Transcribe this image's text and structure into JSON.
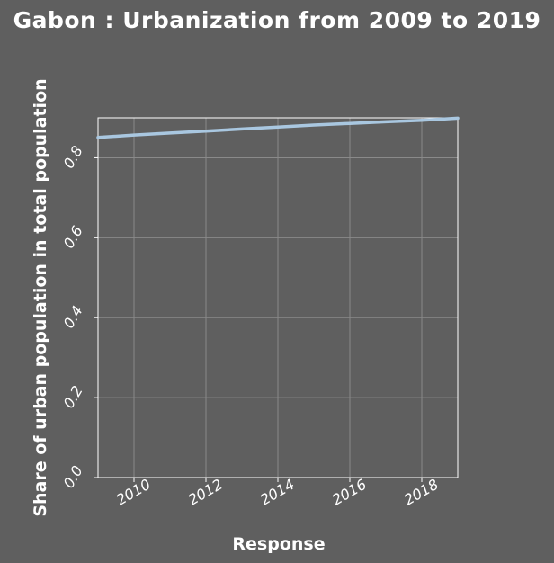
{
  "chart_data": {
    "type": "line",
    "title": "Gabon : Urbanization from 2009 to 2019",
    "xlabel": "Response",
    "ylabel": "Share of urban population in total population",
    "xlim": [
      2009,
      2019
    ],
    "ylim": [
      0,
      0.9
    ],
    "xticks": [
      2010,
      2012,
      2014,
      2016,
      2018
    ],
    "yticks": [
      0.0,
      0.2,
      0.4,
      0.6,
      0.8
    ],
    "xtick_labels": [
      "2010",
      "2012",
      "2014",
      "2016",
      "2018"
    ],
    "ytick_labels": [
      "0.0",
      "0.2",
      "0.4",
      "0.6",
      "0.8"
    ],
    "grid": true,
    "series": [
      {
        "x": [
          2009,
          2010,
          2011,
          2012,
          2013,
          2014,
          2015,
          2016,
          2017,
          2018,
          2019
        ],
        "values": [
          0.851,
          0.857,
          0.862,
          0.867,
          0.872,
          0.877,
          0.882,
          0.886,
          0.89,
          0.894,
          0.899
        ],
        "color": "#a9c7e0"
      }
    ]
  }
}
